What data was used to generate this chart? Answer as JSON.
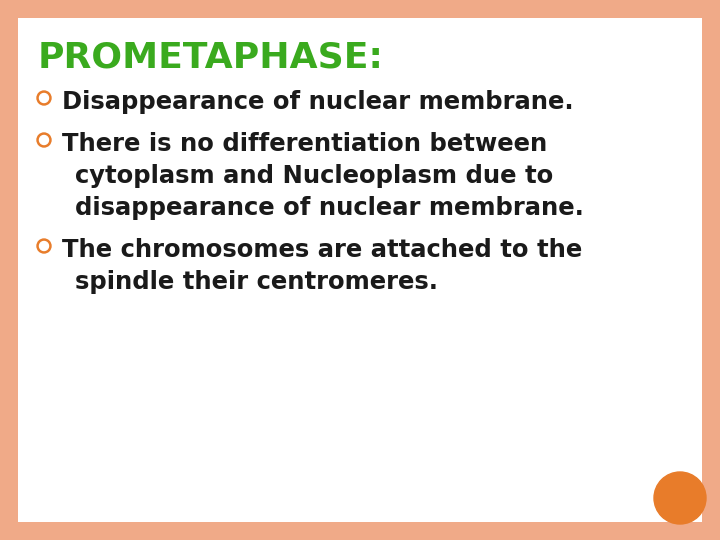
{
  "title": "PROMETAPHASE:",
  "title_color": "#3aaa1e",
  "title_fontsize": 26,
  "bullet_color": "#e87c2a",
  "text_color": "#1a1a1a",
  "background_color": "#ffffff",
  "border_color": "#f0aa88",
  "bullet_symbol": "o",
  "bullets": [
    {
      "lines": [
        "Disappearance of nuclear membrane."
      ]
    },
    {
      "lines": [
        "There is no differentiation between",
        "cytoplasm and Nucleoplasm due to",
        "disappearance of nuclear membrane."
      ]
    },
    {
      "lines": [
        "The chromosomes are attached to the",
        "spindle their centromeres."
      ]
    }
  ],
  "text_fontsize": 17.5,
  "orange_circle_color": "#e87c2a",
  "border_thickness": 18
}
